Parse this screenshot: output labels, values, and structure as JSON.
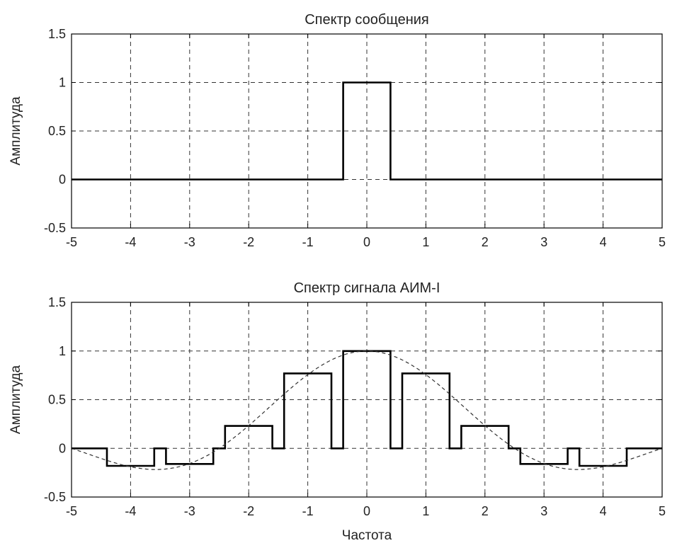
{
  "chart_data": [
    {
      "type": "line",
      "title": "Спектр сообщения",
      "xlabel": "",
      "ylabel": "Амплитуда",
      "xlim": [
        -5,
        5
      ],
      "ylim": [
        -0.5,
        1.5
      ],
      "grid": true,
      "xticks": [
        -5,
        -4,
        -3,
        -2,
        -1,
        0,
        1,
        2,
        3,
        4,
        5
      ],
      "xtick_labels": [
        "-5",
        "-4",
        "-3",
        "-2",
        "-1",
        "0",
        "1",
        "2",
        "3",
        "4",
        "5"
      ],
      "yticks": [
        -0.5,
        0,
        0.5,
        1,
        1.5
      ],
      "ytick_labels": [
        "-0.5",
        "0",
        "0.5",
        "1",
        "1.5"
      ],
      "series": [
        {
          "style": "solid",
          "points": [
            [
              -5,
              0
            ],
            [
              -0.4,
              0
            ],
            [
              -0.4,
              1
            ],
            [
              0.4,
              1
            ],
            [
              0.4,
              0
            ],
            [
              5,
              0
            ]
          ]
        }
      ]
    },
    {
      "type": "line",
      "title": "Спектр сигнала АИМ-I",
      "xlabel": "Частота",
      "ylabel": "Амплитуда",
      "xlim": [
        -5,
        5
      ],
      "ylim": [
        -0.5,
        1.5
      ],
      "grid": true,
      "xticks": [
        -5,
        -4,
        -3,
        -2,
        -1,
        0,
        1,
        2,
        3,
        4,
        5
      ],
      "xtick_labels": [
        "-5",
        "-4",
        "-3",
        "-2",
        "-1",
        "0",
        "1",
        "2",
        "3",
        "4",
        "5"
      ],
      "yticks": [
        -0.5,
        0,
        0.5,
        1,
        1.5
      ],
      "ytick_labels": [
        "-0.5",
        "0",
        "0.5",
        "1",
        "1.5"
      ],
      "series": [
        {
          "style": "solid",
          "points": [
            [
              -5,
              0
            ],
            [
              -4.4,
              0
            ],
            [
              -4.4,
              -0.18
            ],
            [
              -3.6,
              -0.18
            ],
            [
              -3.6,
              0
            ],
            [
              -3.4,
              0
            ],
            [
              -3.4,
              -0.16
            ],
            [
              -2.6,
              -0.16
            ],
            [
              -2.6,
              0
            ],
            [
              -2.4,
              0
            ],
            [
              -2.4,
              0.23
            ],
            [
              -1.6,
              0.23
            ],
            [
              -1.6,
              0
            ],
            [
              -1.4,
              0
            ],
            [
              -1.4,
              0.77
            ],
            [
              -0.6,
              0.77
            ],
            [
              -0.6,
              0
            ],
            [
              -0.4,
              0
            ],
            [
              -0.4,
              1
            ],
            [
              0.4,
              1
            ],
            [
              0.4,
              0
            ],
            [
              0.6,
              0
            ],
            [
              0.6,
              0.77
            ],
            [
              1.4,
              0.77
            ],
            [
              1.4,
              0
            ],
            [
              1.6,
              0
            ],
            [
              1.6,
              0.23
            ],
            [
              2.4,
              0.23
            ],
            [
              2.4,
              0
            ],
            [
              2.6,
              0
            ],
            [
              2.6,
              -0.16
            ],
            [
              3.4,
              -0.16
            ],
            [
              3.4,
              0
            ],
            [
              3.6,
              0
            ],
            [
              3.6,
              -0.18
            ],
            [
              4.4,
              -0.18
            ],
            [
              4.4,
              0
            ],
            [
              5,
              0
            ]
          ]
        },
        {
          "style": "dashed",
          "function": "sinc",
          "x_range": [
            -5,
            5
          ],
          "first_zero": 2.5
        }
      ]
    }
  ]
}
